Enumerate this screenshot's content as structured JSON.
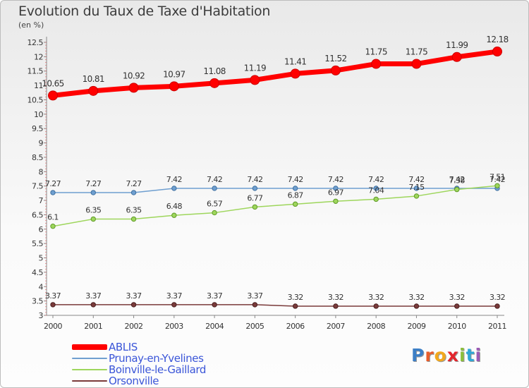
{
  "chart_data": {
    "type": "line",
    "title": "Evolution du Taux de Taxe d'Habitation",
    "subtitle": "(en %)",
    "x": [
      "2000",
      "2001",
      "2002",
      "2003",
      "2004",
      "2005",
      "2006",
      "2007",
      "2008",
      "2009",
      "2010",
      "2011"
    ],
    "ylim": [
      3,
      12.5
    ],
    "yticks": [
      "3",
      "3.5",
      "4",
      "4.5",
      "5",
      "5.5",
      "6",
      "6.5",
      "7",
      "7.5",
      "8",
      "8.5",
      "9",
      "9.5",
      "10",
      "10.5",
      "11",
      "11.5",
      "12",
      "12.5"
    ],
    "grid": false,
    "legend_position": "bottom-left",
    "series": [
      {
        "name": "ABLIS",
        "color": "#ff0000",
        "values": [
          10.65,
          10.81,
          10.92,
          10.97,
          11.08,
          11.19,
          11.41,
          11.52,
          11.75,
          11.75,
          11.99,
          12.18
        ],
        "labels": [
          "10.65",
          "10.81",
          "10.92",
          "10.97",
          "11.08",
          "11.19",
          "11.41",
          "11.52",
          "11.75",
          "11.75",
          "11.99",
          "12.18"
        ]
      },
      {
        "name": "Prunay-en-Yvelines",
        "color": "#6f9fd0",
        "values": [
          7.27,
          7.27,
          7.27,
          7.42,
          7.42,
          7.42,
          7.42,
          7.42,
          7.42,
          7.42,
          7.42,
          7.42
        ],
        "labels": [
          "7.27",
          "7.27",
          "7.27",
          "7.42",
          "7.42",
          "7.42",
          "7.42",
          "7.42",
          "7.42",
          "7.42",
          "7.42",
          "7.42"
        ]
      },
      {
        "name": "Boinville-le-Gaillard",
        "color": "#9ed65c",
        "values": [
          6.1,
          6.35,
          6.35,
          6.48,
          6.57,
          6.77,
          6.87,
          6.97,
          7.04,
          7.15,
          7.38,
          7.51
        ],
        "labels": [
          "6.1",
          "6.35",
          "6.35",
          "6.48",
          "6.57",
          "6.77",
          "6.87",
          "6.97",
          "7.04",
          "7.15",
          "7.38",
          "7.51"
        ]
      },
      {
        "name": "Orsonville",
        "color": "#7a3a3a",
        "values": [
          3.37,
          3.37,
          3.37,
          3.37,
          3.37,
          3.37,
          3.32,
          3.32,
          3.32,
          3.32,
          3.32,
          3.32
        ],
        "labels": [
          "3.37",
          "3.37",
          "3.37",
          "3.37",
          "3.37",
          "3.37",
          "3.32",
          "3.32",
          "3.32",
          "3.32",
          "3.32",
          "3.32"
        ]
      }
    ]
  },
  "logo": {
    "letters": [
      "P",
      "r",
      "o",
      "x",
      "i",
      "t",
      "i"
    ],
    "colors": [
      "#3d7fc6",
      "#e85d2a",
      "#f2a81d",
      "#e3262d",
      "#8bbf3c",
      "#2fa7d6",
      "#9b5bb5"
    ]
  }
}
